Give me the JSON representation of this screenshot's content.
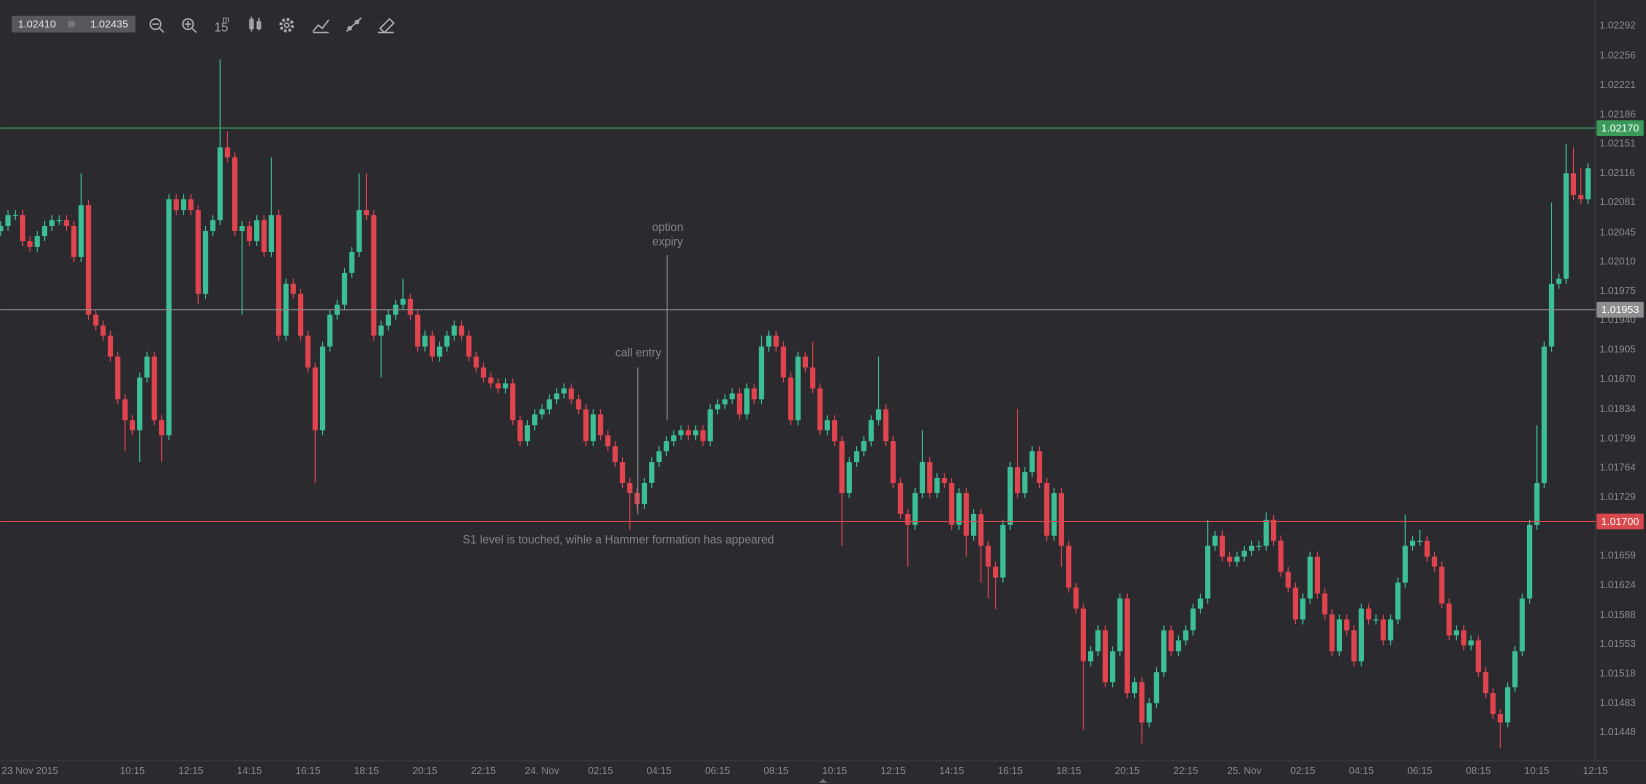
{
  "toolbar": {
    "bid": "1.02410",
    "ask": "1.02435",
    "interval": "15",
    "interval_unit": "m"
  },
  "chart_data": {
    "type": "candlestick",
    "up_color": "#3cbf96",
    "down_color": "#e0444f",
    "ylim": [
      1.01414,
      1.02323
    ],
    "yticks": [
      {
        "value": 1.02292,
        "label": "1.02292"
      },
      {
        "value": 1.02256,
        "label": "1.02256"
      },
      {
        "value": 1.02221,
        "label": "1.02221"
      },
      {
        "value": 1.02186,
        "label": "1.02186"
      },
      {
        "value": 1.02151,
        "label": "1.02151"
      },
      {
        "value": 1.02116,
        "label": "1.02116"
      },
      {
        "value": 1.02081,
        "label": "1.02081"
      },
      {
        "value": 1.02045,
        "label": "1.02045"
      },
      {
        "value": 1.0201,
        "label": "1.02010"
      },
      {
        "value": 1.01975,
        "label": "1.01975"
      },
      {
        "value": 1.0194,
        "label": "1.01940"
      },
      {
        "value": 1.01905,
        "label": "1.01905"
      },
      {
        "value": 1.0187,
        "label": "1.01870"
      },
      {
        "value": 1.01834,
        "label": "1.01834"
      },
      {
        "value": 1.01799,
        "label": "1.01799"
      },
      {
        "value": 1.01764,
        "label": "1.01764"
      },
      {
        "value": 1.01729,
        "label": "1.01729"
      },
      {
        "value": 1.01659,
        "label": "1.01659"
      },
      {
        "value": 1.01624,
        "label": "1.01624"
      },
      {
        "value": 1.01588,
        "label": "1.01588"
      },
      {
        "value": 1.01553,
        "label": "1.01553"
      },
      {
        "value": 1.01518,
        "label": "1.01518"
      },
      {
        "value": 1.01483,
        "label": "1.01483"
      },
      {
        "value": 1.01448,
        "label": "1.01448"
      }
    ],
    "xticks": [
      {
        "value": 4,
        "label": "23 Nov 2015"
      },
      {
        "value": 18,
        "label": "10:15"
      },
      {
        "value": 26,
        "label": "12:15"
      },
      {
        "value": 34,
        "label": "14:15"
      },
      {
        "value": 42,
        "label": "16:15"
      },
      {
        "value": 50,
        "label": "18:15"
      },
      {
        "value": 58,
        "label": "20:15"
      },
      {
        "value": 66,
        "label": "22:15"
      },
      {
        "value": 74,
        "label": "24. Nov"
      },
      {
        "value": 82,
        "label": "02:15"
      },
      {
        "value": 90,
        "label": "04:15"
      },
      {
        "value": 98,
        "label": "06:15"
      },
      {
        "value": 106,
        "label": "08:15"
      },
      {
        "value": 114,
        "label": "10:15"
      },
      {
        "value": 122,
        "label": "12:15"
      },
      {
        "value": 130,
        "label": "14:15"
      },
      {
        "value": 138,
        "label": "16:15"
      },
      {
        "value": 146,
        "label": "18:15"
      },
      {
        "value": 154,
        "label": "20:15"
      },
      {
        "value": 162,
        "label": "22:15"
      },
      {
        "value": 170,
        "label": "25. Nov"
      },
      {
        "value": 178,
        "label": "02:15"
      },
      {
        "value": 186,
        "label": "04:15"
      },
      {
        "value": 194,
        "label": "06:15"
      },
      {
        "value": 202,
        "label": "08:15"
      },
      {
        "value": 210,
        "label": "10:15"
      },
      {
        "value": 218,
        "label": "12:15"
      }
    ],
    "levels": [
      {
        "value": 1.0217,
        "label": "1.02170",
        "color": "#3a9a5a"
      },
      {
        "value": 1.01953,
        "label": "1.01953",
        "color": "#8e8e90"
      },
      {
        "value": 1.017,
        "label": "1.01700",
        "color": "#d9484c"
      }
    ],
    "annotations": {
      "option_expiry": [
        "option",
        "expiry"
      ],
      "call_entry": "call entry",
      "s1": "S1 level is touched, wihle a Hammer formation has appeared"
    },
    "open": [
      1.02047,
      1.02053,
      1.02066,
      1.02066,
      1.02035,
      1.02028,
      1.02041,
      1.02053,
      1.0206,
      1.0206,
      1.02053,
      1.02016,
      1.02078,
      1.01947,
      1.01934,
      1.01922,
      1.01897,
      1.01846,
      1.01821,
      1.01809,
      1.01872,
      1.01897,
      1.01821,
      1.01803,
      1.02085,
      1.02072,
      1.02085,
      1.02072,
      1.01972,
      1.02047,
      1.0206,
      1.02147,
      1.02135,
      1.02047,
      1.02053,
      1.02035,
      1.0206,
      1.02022,
      1.02066,
      1.01922,
      1.01984,
      1.01972,
      1.01922,
      1.01884,
      1.01809,
      1.01909,
      1.01947,
      1.01959,
      1.01997,
      1.02022,
      1.02072,
      1.02066,
      1.01922,
      1.01934,
      1.01947,
      1.01959,
      1.01966,
      1.01947,
      1.01909,
      1.01922,
      1.01897,
      1.01909,
      1.01922,
      1.01934,
      1.01922,
      1.01897,
      1.01884,
      1.01872,
      1.01865,
      1.01859,
      1.01865,
      1.01821,
      1.01796,
      1.01815,
      1.01828,
      1.01834,
      1.01846,
      1.01853,
      1.01859,
      1.01846,
      1.01834,
      1.01796,
      1.01828,
      1.01803,
      1.0179,
      1.01771,
      1.01746,
      1.01734,
      1.01721,
      1.01746,
      1.01771,
      1.01784,
      1.01796,
      1.01803,
      1.01809,
      1.01803,
      1.01809,
      1.01796,
      1.01834,
      1.0184,
      1.01846,
      1.01853,
      1.01828,
      1.01859,
      1.01846,
      1.01909,
      1.01922,
      1.01909,
      1.01872,
      1.01821,
      1.01897,
      1.01884,
      1.01859,
      1.01809,
      1.01821,
      1.01796,
      1.01734,
      1.01771,
      1.01784,
      1.01796,
      1.01821,
      1.01834,
      1.01796,
      1.01746,
      1.01709,
      1.01696,
      1.01734,
      1.01771,
      1.01734,
      1.01752,
      1.01746,
      1.01696,
      1.01734,
      1.01683,
      1.01709,
      1.01671,
      1.01646,
      1.01633,
      1.01696,
      1.01765,
      1.01734,
      1.01759,
      1.01784,
      1.01746,
      1.01683,
      1.01734,
      1.01671,
      1.01621,
      1.01596,
      1.01533,
      1.01545,
      1.0157,
      1.01508,
      1.01545,
      1.01608,
      1.01495,
      1.01508,
      1.0146,
      1.01483,
      1.0152,
      1.0157,
      1.01545,
      1.01558,
      1.0157,
      1.01596,
      1.01608,
      1.01671,
      1.01683,
      1.01658,
      1.01652,
      1.01658,
      1.01665,
      1.01671,
      1.01671,
      1.01702,
      1.01677,
      1.0164,
      1.01621,
      1.01583,
      1.01608,
      1.01658,
      1.01614,
      1.01589,
      1.01545,
      1.01583,
      1.0157,
      1.01533,
      1.01596,
      1.01583,
      1.01583,
      1.01558,
      1.01583,
      1.01627,
      1.01671,
      1.01677,
      1.01677,
      1.01658,
      1.01646,
      1.01602,
      1.01564,
      1.0157,
      1.01552,
      1.01558,
      1.0152,
      1.01495,
      1.0147,
      1.0146,
      1.01502,
      1.01545,
      1.01608,
      1.01696,
      1.01746,
      1.01909,
      1.01984,
      1.0199,
      1.02116,
      1.0209,
      1.02085
    ],
    "high": [
      1.02059,
      1.02072,
      1.02072,
      1.02072,
      1.02041,
      1.02047,
      1.02059,
      1.02066,
      1.02066,
      1.02066,
      1.02059,
      1.02116,
      1.02084,
      1.01953,
      1.0194,
      1.01928,
      1.01903,
      1.01852,
      1.01827,
      1.01878,
      1.01903,
      1.01903,
      1.01827,
      1.02091,
      1.02091,
      1.02091,
      1.02091,
      1.02078,
      1.02053,
      1.02066,
      1.02252,
      1.02166,
      1.02141,
      1.02059,
      1.02059,
      1.02066,
      1.02066,
      1.02135,
      1.02072,
      1.0199,
      1.0199,
      1.01978,
      1.01928,
      1.0189,
      1.01915,
      1.01953,
      1.01965,
      1.02003,
      1.02028,
      1.02116,
      1.02116,
      1.02072,
      1.0194,
      1.01953,
      1.01965,
      1.0199,
      1.01972,
      1.01953,
      1.01928,
      1.01928,
      1.01915,
      1.01928,
      1.0194,
      1.0194,
      1.01928,
      1.01903,
      1.0189,
      1.01878,
      1.01871,
      1.01871,
      1.01871,
      1.01827,
      1.01821,
      1.01834,
      1.0184,
      1.01852,
      1.01859,
      1.01865,
      1.01865,
      1.01852,
      1.0184,
      1.01834,
      1.01834,
      1.01809,
      1.01796,
      1.01777,
      1.01752,
      1.0174,
      1.01752,
      1.01777,
      1.0179,
      1.01802,
      1.01809,
      1.01815,
      1.01815,
      1.01815,
      1.01815,
      1.0184,
      1.01846,
      1.01852,
      1.01859,
      1.01859,
      1.01865,
      1.01865,
      1.01922,
      1.01928,
      1.01928,
      1.01915,
      1.01878,
      1.01903,
      1.01903,
      1.01915,
      1.01865,
      1.01827,
      1.01827,
      1.01802,
      1.01777,
      1.0179,
      1.01802,
      1.01827,
      1.01897,
      1.0184,
      1.01802,
      1.01752,
      1.01715,
      1.0174,
      1.01809,
      1.01777,
      1.01758,
      1.01758,
      1.01752,
      1.0174,
      1.0174,
      1.01715,
      1.01715,
      1.01677,
      1.01652,
      1.01702,
      1.01771,
      1.01834,
      1.01765,
      1.0179,
      1.0179,
      1.01752,
      1.0174,
      1.0174,
      1.01677,
      1.01627,
      1.01602,
      1.01551,
      1.01576,
      1.01576,
      1.01551,
      1.01614,
      1.01614,
      1.01514,
      1.01514,
      1.01489,
      1.01526,
      1.01576,
      1.01576,
      1.01564,
      1.01576,
      1.01602,
      1.01614,
      1.01702,
      1.01689,
      1.01689,
      1.01664,
      1.01664,
      1.01671,
      1.01677,
      1.01677,
      1.01711,
      1.01708,
      1.01683,
      1.01646,
      1.01627,
      1.01614,
      1.01664,
      1.01664,
      1.0162,
      1.01595,
      1.01589,
      1.01589,
      1.01576,
      1.01602,
      1.01602,
      1.01589,
      1.01589,
      1.01589,
      1.01633,
      1.01708,
      1.01683,
      1.0169,
      1.01683,
      1.01664,
      1.01652,
      1.01608,
      1.01576,
      1.01576,
      1.01564,
      1.01564,
      1.01526,
      1.01501,
      1.01476,
      1.01508,
      1.01551,
      1.01614,
      1.01702,
      1.01815,
      1.01915,
      1.02081,
      1.01996,
      1.02151,
      1.02147,
      1.02122,
      1.02128
    ],
    "low": [
      1.02041,
      1.02047,
      1.0206,
      1.02029,
      1.02022,
      1.02022,
      1.02035,
      1.02047,
      1.02054,
      1.02047,
      1.0201,
      1.0201,
      1.01941,
      1.01928,
      1.01916,
      1.01891,
      1.0184,
      1.01784,
      1.01803,
      1.01771,
      1.01866,
      1.01815,
      1.01771,
      1.01797,
      1.02066,
      1.02066,
      1.02066,
      1.0196,
      1.01966,
      1.02041,
      1.02054,
      1.02129,
      1.02041,
      1.01947,
      1.02029,
      1.02029,
      1.02016,
      1.02016,
      1.01916,
      1.01916,
      1.01966,
      1.01916,
      1.01878,
      1.01746,
      1.01803,
      1.01903,
      1.01941,
      1.01953,
      1.01991,
      1.02016,
      1.0206,
      1.01916,
      1.01872,
      1.01928,
      1.01941,
      1.01953,
      1.01941,
      1.01903,
      1.01903,
      1.01891,
      1.01891,
      1.01903,
      1.01916,
      1.01916,
      1.01891,
      1.01878,
      1.01866,
      1.01859,
      1.01853,
      1.01853,
      1.01815,
      1.0179,
      1.0179,
      1.01809,
      1.01822,
      1.01828,
      1.0184,
      1.01847,
      1.0184,
      1.01828,
      1.0179,
      1.0179,
      1.01797,
      1.01784,
      1.01765,
      1.0174,
      1.0169,
      1.01715,
      1.01715,
      1.0174,
      1.01765,
      1.01778,
      1.0179,
      1.01797,
      1.01797,
      1.01797,
      1.0179,
      1.0179,
      1.01828,
      1.01834,
      1.0184,
      1.01822,
      1.01822,
      1.0184,
      1.0184,
      1.01903,
      1.01903,
      1.01866,
      1.01815,
      1.01815,
      1.01878,
      1.01853,
      1.01803,
      1.01803,
      1.0179,
      1.01671,
      1.01728,
      1.01765,
      1.01778,
      1.0179,
      1.01815,
      1.0179,
      1.0174,
      1.01703,
      1.01646,
      1.0169,
      1.01728,
      1.01728,
      1.01728,
      1.0174,
      1.0169,
      1.0169,
      1.01658,
      1.01677,
      1.01627,
      1.01608,
      1.01595,
      1.01627,
      1.0169,
      1.01728,
      1.01728,
      1.01753,
      1.0174,
      1.01677,
      1.01677,
      1.01646,
      1.01615,
      1.0159,
      1.01451,
      1.01527,
      1.01539,
      1.01502,
      1.01502,
      1.01539,
      1.01489,
      1.01489,
      1.01435,
      1.01454,
      1.01477,
      1.01514,
      1.01539,
      1.01539,
      1.01552,
      1.01564,
      1.0159,
      1.01602,
      1.01665,
      1.01652,
      1.01646,
      1.01646,
      1.01652,
      1.01659,
      1.01665,
      1.01665,
      1.01671,
      1.01634,
      1.01615,
      1.01577,
      1.01577,
      1.01602,
      1.01608,
      1.01583,
      1.01539,
      1.01539,
      1.01564,
      1.01527,
      1.01527,
      1.01577,
      1.01577,
      1.01552,
      1.01552,
      1.01577,
      1.01621,
      1.01665,
      1.01671,
      1.01652,
      1.0164,
      1.01596,
      1.01558,
      1.01558,
      1.01546,
      1.01546,
      1.01514,
      1.01489,
      1.01464,
      1.01429,
      1.01454,
      1.01496,
      1.01539,
      1.01602,
      1.0169,
      1.0174,
      1.01903,
      1.01978,
      1.01984,
      1.02084,
      1.02079,
      1.02079
    ],
    "close": [
      1.02053,
      1.02066,
      1.02066,
      1.02035,
      1.02028,
      1.02041,
      1.02053,
      1.0206,
      1.0206,
      1.02053,
      1.02016,
      1.02078,
      1.01947,
      1.01934,
      1.01922,
      1.01897,
      1.01846,
      1.01821,
      1.01809,
      1.01872,
      1.01897,
      1.01821,
      1.01803,
      1.02085,
      1.02072,
      1.02085,
      1.02072,
      1.01972,
      1.02047,
      1.0206,
      1.02147,
      1.02135,
      1.02047,
      1.02053,
      1.02035,
      1.0206,
      1.02022,
      1.02066,
      1.01922,
      1.01984,
      1.01972,
      1.01922,
      1.01884,
      1.01809,
      1.01909,
      1.01947,
      1.01959,
      1.01997,
      1.02022,
      1.02072,
      1.02066,
      1.01922,
      1.01934,
      1.01947,
      1.01959,
      1.01966,
      1.01947,
      1.01909,
      1.01922,
      1.01897,
      1.01909,
      1.01922,
      1.01934,
      1.01922,
      1.01897,
      1.01884,
      1.01872,
      1.01865,
      1.01859,
      1.01865,
      1.01821,
      1.01796,
      1.01815,
      1.01828,
      1.01834,
      1.01846,
      1.01853,
      1.01859,
      1.01846,
      1.01834,
      1.01796,
      1.01828,
      1.01803,
      1.0179,
      1.01771,
      1.01746,
      1.01734,
      1.01721,
      1.01746,
      1.01771,
      1.01784,
      1.01796,
      1.01803,
      1.01809,
      1.01803,
      1.01809,
      1.01796,
      1.01834,
      1.0184,
      1.01846,
      1.01853,
      1.01828,
      1.01859,
      1.01846,
      1.01909,
      1.01922,
      1.01909,
      1.01872,
      1.01821,
      1.01897,
      1.01884,
      1.01859,
      1.01809,
      1.01821,
      1.01796,
      1.01734,
      1.01771,
      1.01784,
      1.01796,
      1.01821,
      1.01834,
      1.01796,
      1.01746,
      1.01709,
      1.01696,
      1.01734,
      1.01771,
      1.01734,
      1.01752,
      1.01746,
      1.01696,
      1.01734,
      1.01683,
      1.01709,
      1.01671,
      1.01646,
      1.01633,
      1.01696,
      1.01765,
      1.01734,
      1.01759,
      1.01784,
      1.01746,
      1.01683,
      1.01734,
      1.01671,
      1.01621,
      1.01596,
      1.01533,
      1.01545,
      1.0157,
      1.01508,
      1.01545,
      1.01608,
      1.01495,
      1.01508,
      1.0146,
      1.01483,
      1.0152,
      1.0157,
      1.01545,
      1.01558,
      1.0157,
      1.01596,
      1.01608,
      1.01671,
      1.01683,
      1.01658,
      1.01652,
      1.01658,
      1.01665,
      1.01671,
      1.01671,
      1.01702,
      1.01677,
      1.0164,
      1.01621,
      1.01583,
      1.01608,
      1.01658,
      1.01614,
      1.01589,
      1.01545,
      1.01583,
      1.0157,
      1.01533,
      1.01596,
      1.01583,
      1.01583,
      1.01558,
      1.01583,
      1.01627,
      1.01671,
      1.01677,
      1.01677,
      1.01658,
      1.01646,
      1.01602,
      1.01564,
      1.0157,
      1.01552,
      1.01558,
      1.0152,
      1.01495,
      1.0147,
      1.0146,
      1.01502,
      1.01545,
      1.01608,
      1.01696,
      1.01746,
      1.01909,
      1.01984,
      1.0199,
      1.02116,
      1.0209,
      1.02085,
      1.02122
    ]
  }
}
